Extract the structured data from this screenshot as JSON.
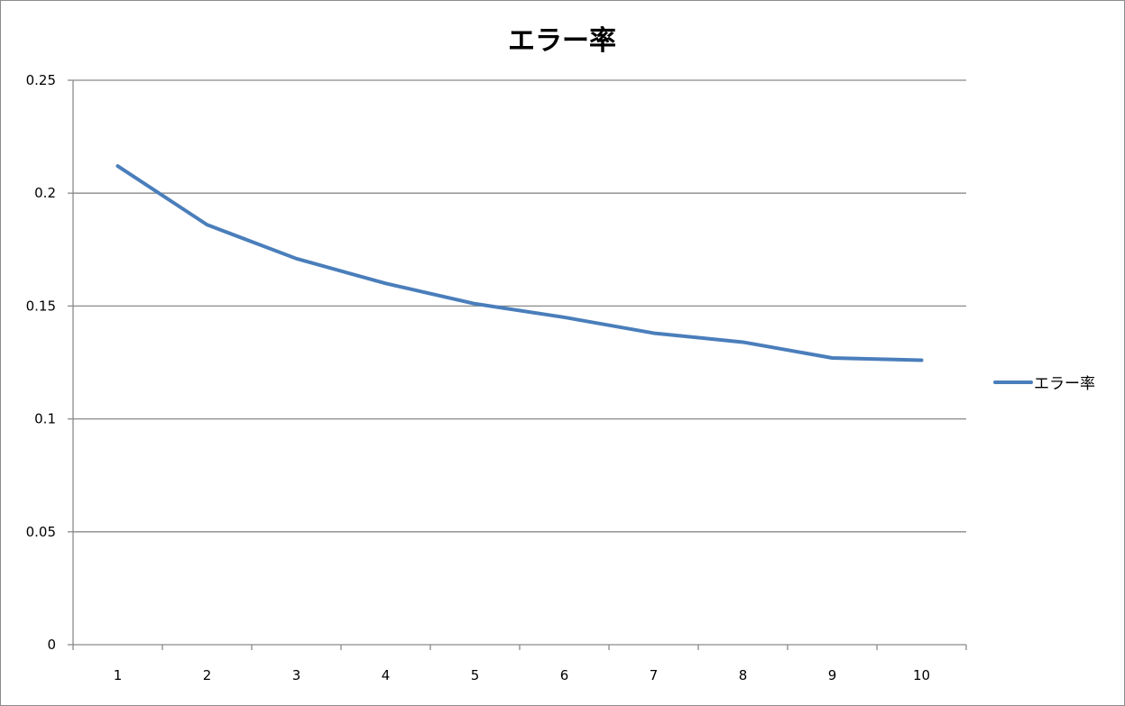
{
  "chart_data": {
    "type": "line",
    "title": "エラー率",
    "xlabel": "",
    "ylabel": "",
    "categories": [
      "1",
      "2",
      "3",
      "4",
      "5",
      "6",
      "7",
      "8",
      "9",
      "10"
    ],
    "series": [
      {
        "name": "エラー率",
        "color": "#4a7ebb",
        "values": [
          0.212,
          0.186,
          0.171,
          0.16,
          0.151,
          0.145,
          0.138,
          0.134,
          0.127,
          0.126
        ]
      }
    ],
    "ylim": [
      0,
      0.25
    ],
    "yticks": [
      "0",
      "0.05",
      "0.1",
      "0.15",
      "0.2",
      "0.25"
    ],
    "grid": true,
    "legend_position": "right"
  }
}
